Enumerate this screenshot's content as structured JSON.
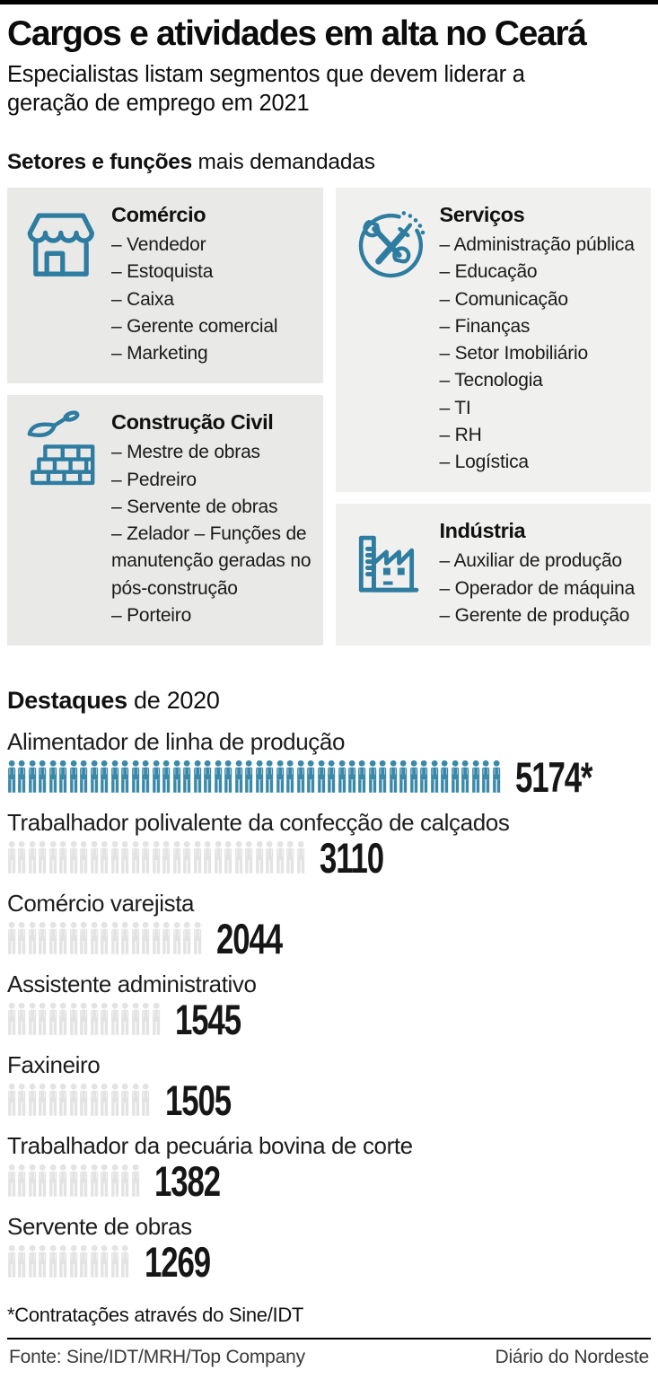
{
  "page": {
    "title": "Cargos e atividades em alta no Ceará",
    "subtitle": "Especialistas listam segmentos que devem liderar a geração de emprego em 2021"
  },
  "sectors": {
    "heading_bold": "Setores e funções",
    "heading_rest": " mais demandadas",
    "boxes": [
      {
        "id": "comercio",
        "icon": "storefront-icon",
        "column": "left",
        "title": "Comércio",
        "items": [
          "– Vendedor",
          "– Estoquista",
          "– Caixa",
          "– Gerente comercial",
          "– Marketing"
        ]
      },
      {
        "id": "construcao",
        "icon": "trowel-bricks-icon",
        "column": "left",
        "title": "Construção Civil",
        "items": [
          "– Mestre de obras",
          "– Pedreiro",
          "– Servente de obras",
          "– Zelador – Funções de manutenção geradas no pós-construção",
          "– Porteiro"
        ]
      },
      {
        "id": "servicos",
        "icon": "crossed-tools-icon",
        "column": "right",
        "title": "Serviços",
        "items": [
          "– Administração pública",
          "– Educação",
          "– Comunicação",
          "– Finanças",
          "– Setor Imobiliário",
          "– Tecnologia",
          "– TI",
          "– RH",
          "– Logística"
        ]
      },
      {
        "id": "industria",
        "icon": "factory-icon",
        "column": "right",
        "title": "Indústria",
        "items": [
          "– Auxiliar de produção",
          "– Operador de máquina",
          "– Gerente de produção"
        ]
      }
    ]
  },
  "chart_data": {
    "type": "pictogram",
    "title": "Destaques de 2020",
    "title_bold": "Destaques",
    "title_rest": " de 2020",
    "categories": [
      "Alimentador de linha de produção",
      "Trabalhador polivalente da confecção de calçados",
      "Comércio varejista",
      "Assistente administrativo",
      "Faxineiro",
      "Trabalhador da pecuária bovina de corte",
      "Servente de obras"
    ],
    "values": [
      5174,
      3110,
      2044,
      1545,
      1505,
      1382,
      1269
    ],
    "rows": [
      {
        "label": "Alimentador de linha de produção",
        "value": "5174*",
        "numeric": 5174,
        "icons": 48,
        "highlight": true
      },
      {
        "label": "Trabalhador polivalente da confecção de calçados",
        "value": "3110",
        "numeric": 3110,
        "icons": 29,
        "highlight": false
      },
      {
        "label": "Comércio varejista",
        "value": "2044",
        "numeric": 2044,
        "icons": 19,
        "highlight": false
      },
      {
        "label": "Assistente administrativo",
        "value": "1545",
        "numeric": 1545,
        "icons": 15,
        "highlight": false
      },
      {
        "label": "Faxineiro",
        "value": "1505",
        "numeric": 1505,
        "icons": 14,
        "highlight": false
      },
      {
        "label": "Trabalhador da pecuária bovina de corte",
        "value": "1382",
        "numeric": 1382,
        "icons": 13,
        "highlight": false
      },
      {
        "label": "Servente de obras",
        "value": "1269",
        "numeric": 1269,
        "icons": 12,
        "highlight": false
      }
    ]
  },
  "footnote": "*Contratações através do Sine/IDT",
  "footer": {
    "source": "Fonte: Sine/IDT/MRH/Top Company",
    "credit": "Diário do Nordeste"
  },
  "colors": {
    "accent_teal": "#3a89a9",
    "icon_stroke_teal": "#2e7da1",
    "person_gray": "#e3e3e3",
    "box_gray_left": "#e9e9e8",
    "box_gray_right": "#f0f0ef"
  }
}
